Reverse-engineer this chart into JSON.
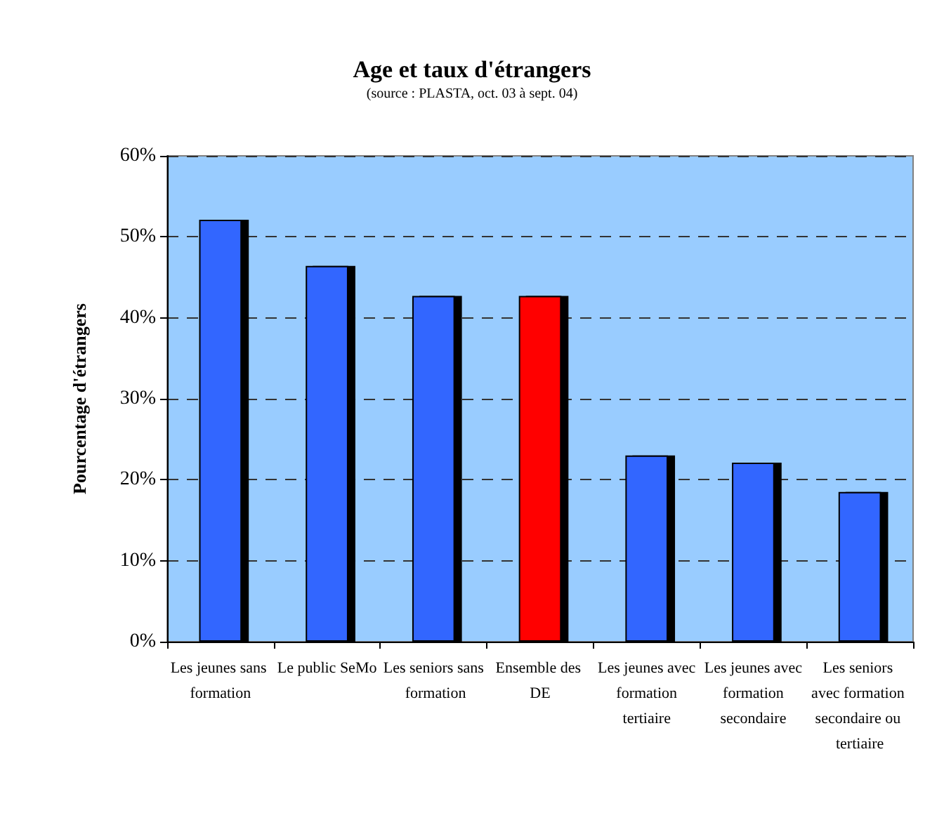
{
  "chart_data": {
    "type": "bar",
    "title": "Age et taux d'étrangers",
    "subtitle": "(source : PLASTA, oct. 03 à sept. 04)",
    "ylabel": "Pourcentage d'étrangers",
    "categories": [
      "Les jeunes sans formation",
      "Le public SeMo",
      "Les seniors sans formation",
      "Ensemble des DE",
      "Les jeunes avec formation tertiaire",
      "Les jeunes avec formation secondaire",
      "Les seniors avec formation secondaire ou tertiaire"
    ],
    "values": [
      52.1,
      46.4,
      42.7,
      42.7,
      23.0,
      22.1,
      18.5
    ],
    "colors": [
      "#3366ff",
      "#3366ff",
      "#3366ff",
      "#ff0000",
      "#3366ff",
      "#3366ff",
      "#3366ff"
    ],
    "ylim": [
      0,
      60
    ],
    "yticks": [
      {
        "value": 0,
        "label": "0%"
      },
      {
        "value": 10,
        "label": "10%"
      },
      {
        "value": 20,
        "label": "20%"
      },
      {
        "value": 30,
        "label": "30%"
      },
      {
        "value": 40,
        "label": "40%"
      },
      {
        "value": 50,
        "label": "50%"
      },
      {
        "value": 60,
        "label": "60%"
      }
    ],
    "grid": "y"
  }
}
